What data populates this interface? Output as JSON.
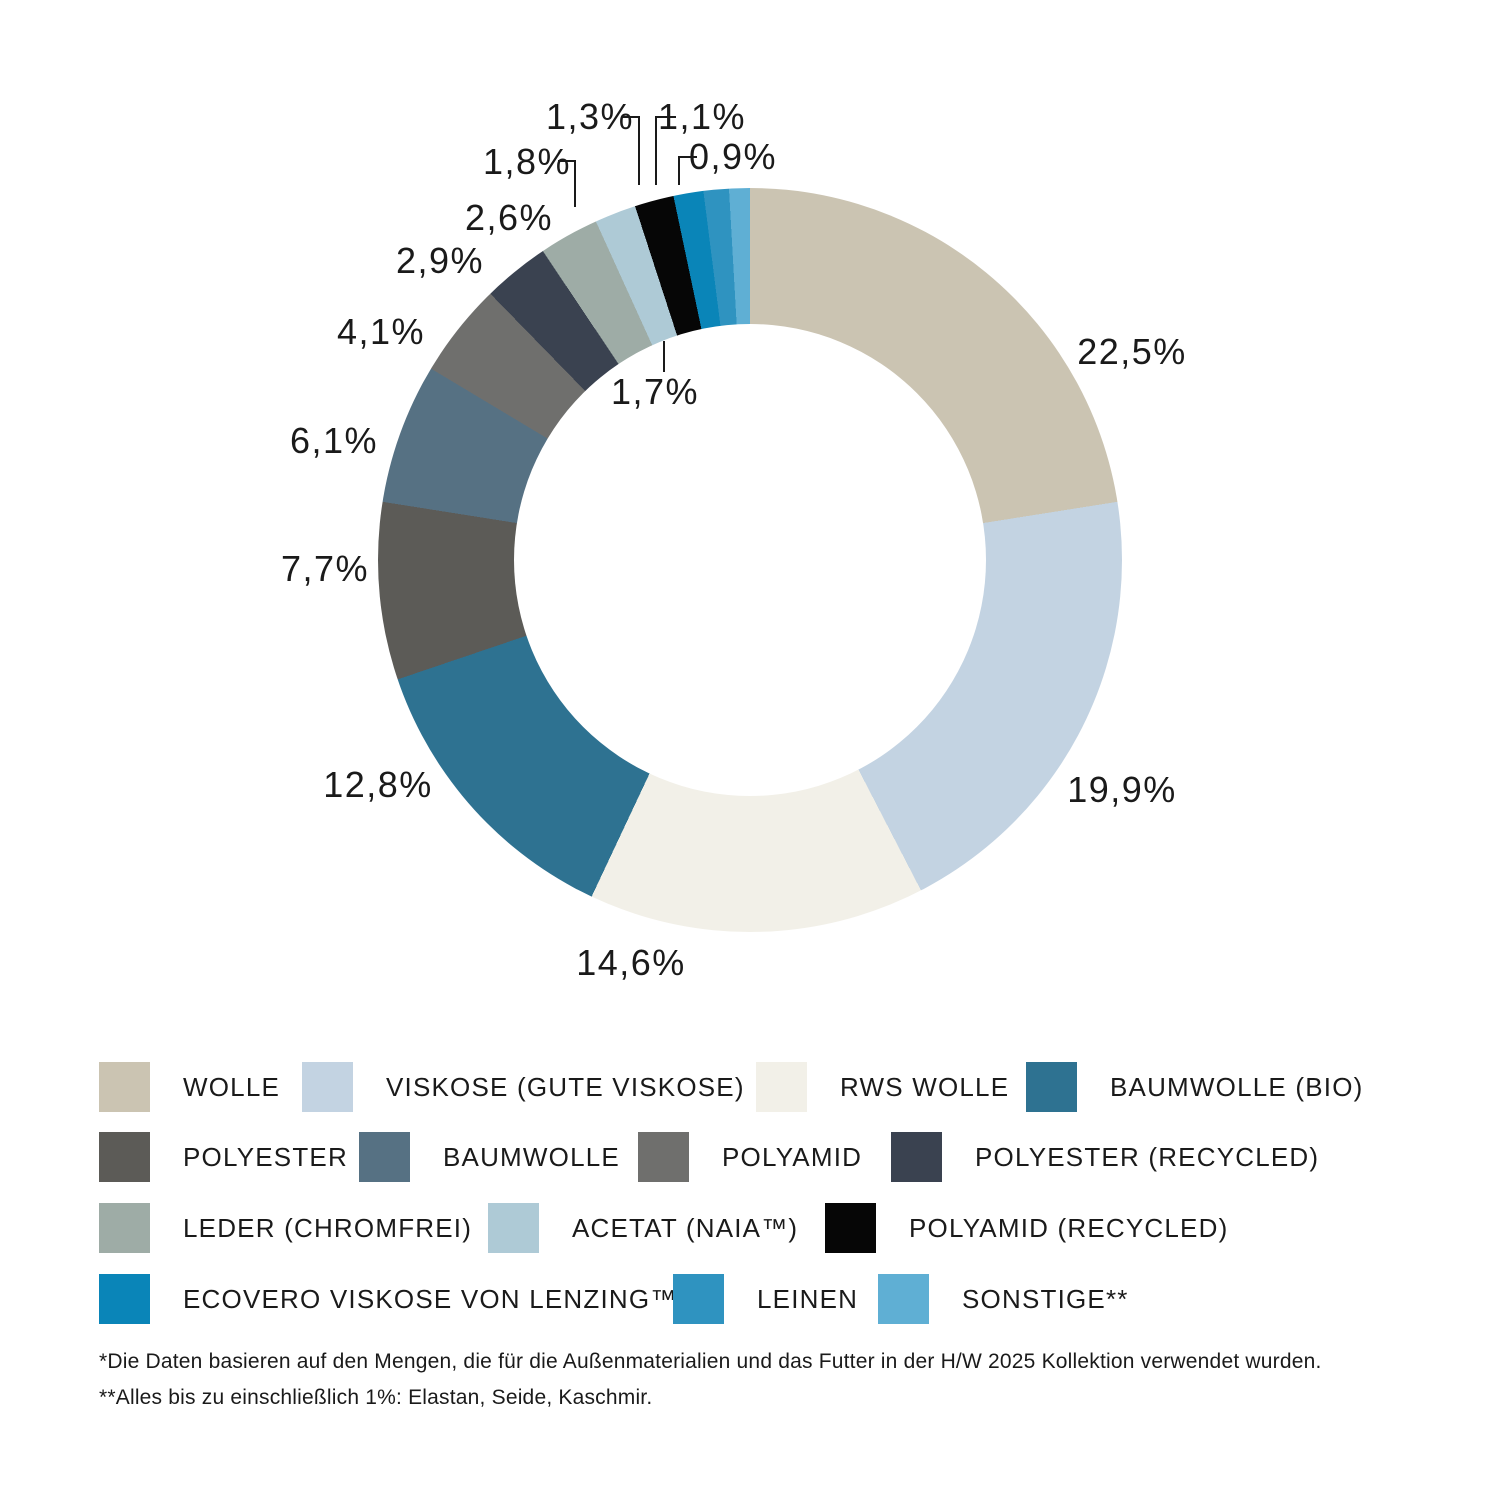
{
  "chart_data": {
    "type": "donut",
    "title": "",
    "unit": "%",
    "start_angle_deg": 0,
    "direction": "clockwise",
    "slices": [
      {
        "name": "WOLLE",
        "value": 22.5,
        "label": "22,5%",
        "color": "#CBC4B2"
      },
      {
        "name": "VISKOSE (GUTE VISKOSE)",
        "value": 19.9,
        "label": "19,9%",
        "color": "#C3D3E2"
      },
      {
        "name": "RWS WOLLE",
        "value": 14.6,
        "label": "14,6%",
        "color": "#F2F0E8"
      },
      {
        "name": "BAUMWOLLE (BIO)",
        "value": 12.8,
        "label": "12,8%",
        "color": "#2E7291"
      },
      {
        "name": "POLYESTER",
        "value": 7.7,
        "label": "7,7%",
        "color": "#5C5B57"
      },
      {
        "name": "BAUMWOLLE",
        "value": 6.1,
        "label": "6,1%",
        "color": "#567183"
      },
      {
        "name": "POLYAMID",
        "value": 4.1,
        "label": "4,1%",
        "color": "#6F6F6D"
      },
      {
        "name": "POLYESTER (RECYCLED)",
        "value": 2.9,
        "label": "2,9%",
        "color": "#3A4250"
      },
      {
        "name": "LEDER (CHROMFREI)",
        "value": 2.6,
        "label": "2,6%",
        "color": "#9EACA6"
      },
      {
        "name": "ACETAT (NAIA™)",
        "value": 1.8,
        "label": "1,8%",
        "color": "#AECAD6"
      },
      {
        "name": "POLYAMID (RECYCLED)",
        "value": 1.7,
        "label": "1,7%",
        "color": "#060606"
      },
      {
        "name": "ECOVERO VISKOSE VON LENZING™",
        "value": 1.3,
        "label": "1,3%",
        "color": "#0A85B8"
      },
      {
        "name": "LEINEN",
        "value": 1.1,
        "label": "1,1%",
        "color": "#2F93C0"
      },
      {
        "name": "SONSTIGE**",
        "value": 0.9,
        "label": "0,9%",
        "color": "#5FAFD4"
      }
    ]
  },
  "legend": {
    "rows": [
      [
        "WOLLE",
        "VISKOSE (GUTE VISKOSE)",
        "RWS WOLLE",
        "BAUMWOLLE (BIO)"
      ],
      [
        "POLYESTER",
        "BAUMWOLLE",
        "POLYAMID",
        "POLYESTER (RECYCLED)"
      ],
      [
        "LEDER (CHROMFREI)",
        "ACETAT (NAIA™)",
        "POLYAMID (RECYCLED)"
      ],
      [
        "ECOVERO VISKOSE VON LENZING™",
        "LEINEN",
        "SONSTIGE**"
      ]
    ]
  },
  "footnotes": {
    "line1": "*Die Daten basieren auf den Mengen, die für die Außenmaterialien und das Futter in der H/W 2025 Kollektion verwendet wurden.",
    "line2": "**Alles bis zu einschließlich 1%: Elastan, Seide, Kaschmir."
  }
}
